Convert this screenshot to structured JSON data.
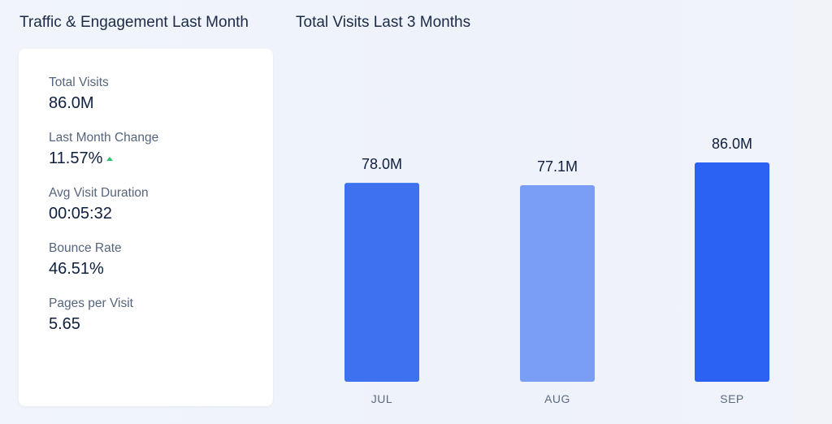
{
  "left_section": {
    "title": "Traffic & Engagement Last Month",
    "metrics": [
      {
        "label": "Total Visits",
        "value": "86.0M"
      },
      {
        "label": "Last Month Change",
        "value": "11.57%",
        "trend_icon": "triangle-up-icon",
        "trend_color": "#2fbf71"
      },
      {
        "label": "Avg Visit Duration",
        "value": "00:05:32"
      },
      {
        "label": "Bounce Rate",
        "value": "46.51%"
      },
      {
        "label": "Pages per Visit",
        "value": "5.65"
      }
    ]
  },
  "right_section": {
    "title": "Total Visits Last 3 Months"
  },
  "chart_data": {
    "type": "bar",
    "categories": [
      "JUL",
      "AUG",
      "SEP"
    ],
    "values": [
      78.0,
      77.1,
      86.0
    ],
    "data_labels": [
      "78.0M",
      "77.1M",
      "86.0M"
    ],
    "title": "Total Visits Last 3 Months",
    "xlabel": "",
    "ylabel": "",
    "ylim": [
      0,
      86.0
    ],
    "grid": false,
    "legend": "none",
    "colors": [
      "#3d71ef",
      "#7a9df5",
      "#2b62f3"
    ]
  }
}
